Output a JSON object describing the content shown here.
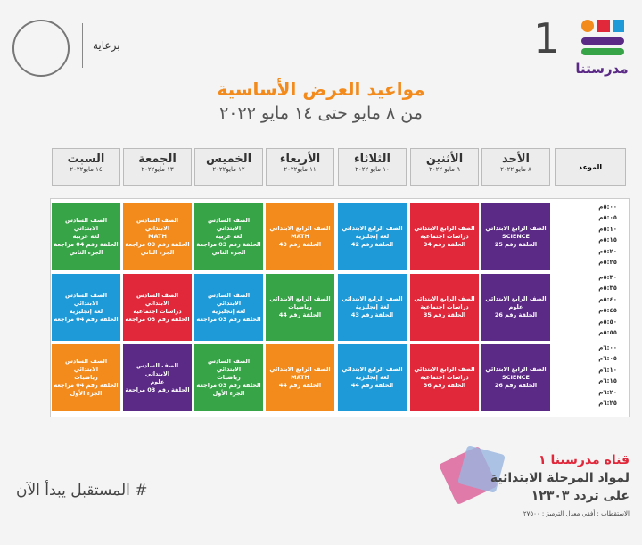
{
  "header": {
    "logo": "مدرستنا",
    "channel_number": "1",
    "sponsor": "برعاية"
  },
  "title": "مواعيد العرض الأساسية",
  "subtitle": "من ٨ مايو حتى ١٤ مايو ٢٠٢٢",
  "table": {
    "time_header": "الموعد",
    "days": [
      {
        "name": "الأحد",
        "date": "٨ مايو ٢٠٢٢"
      },
      {
        "name": "الأثنين",
        "date": "٩ مايو ٢٠٢٢"
      },
      {
        "name": "الثلاثاء",
        "date": "١٠ مايو ٢٠٢٢"
      },
      {
        "name": "الأربعاء",
        "date": "١١ مايو٢٠٢٢"
      },
      {
        "name": "الخميس",
        "date": "١٢ مايو٢٠٢٢"
      },
      {
        "name": "الجمعة",
        "date": "١٣ مايو٢٠٢٢"
      },
      {
        "name": "السبت",
        "date": "١٤ مايو٢٠٢٢"
      }
    ],
    "times": [
      [
        "٥:٠٠م",
        "٥:٠٥م",
        "٥:١٠م",
        "٥:١٥م",
        "٥:٢٠م",
        "٥:٢٥م"
      ],
      [
        "٥:٣٠م",
        "٥:٣٥م",
        "٥:٤٠م",
        "٥:٤٥م",
        "٥:٥٠م",
        "٥:٥٥م"
      ],
      [
        "٦:٠٠م",
        "٦:٠٥م",
        "٦:١٠م",
        "٦:١٥م",
        "٦:٢٠م",
        "٦:٢٥م"
      ]
    ],
    "blocks": [
      [
        {
          "color": "#5b2a86",
          "lines": [
            "الصف الرابع الابتدائي",
            "SCIENCE",
            "الحلقة رقم 25"
          ]
        },
        {
          "color": "#e0283a",
          "lines": [
            "الصف الرابع الابتدائي",
            "دراسات اجتماعية",
            "الحلقة رقم 34"
          ]
        },
        {
          "color": "#1f9ad8",
          "lines": [
            "الصف الرابع الابتدائي",
            "لغة إنجليزية",
            "الحلقة رقم 42"
          ]
        },
        {
          "color": "#f28a1c",
          "lines": [
            "الصف الرابع الابتدائي",
            "MATH",
            "الحلقة رقم 43"
          ]
        },
        {
          "color": "#37a447",
          "lines": [
            "الصف السادس الابتدائي",
            "لغة عربية",
            "الحلقة رقم 03 مراجعة",
            "الجزء الثاني"
          ]
        },
        {
          "color": "#f28a1c",
          "lines": [
            "الصف السادس الابتدائي",
            "MATH",
            "الحلقة رقم 03 مراجعة",
            "الجزء الثاني"
          ]
        },
        {
          "color": "#37a447",
          "lines": [
            "الصف السادس الابتدائي",
            "لغة عربية",
            "الحلقة رقم 04 مراجعة",
            "الجزء الثاني"
          ]
        }
      ],
      [
        {
          "color": "#5b2a86",
          "lines": [
            "الصف الرابع الابتدائي",
            "علوم",
            "الحلقة رقم 26"
          ]
        },
        {
          "color": "#e0283a",
          "lines": [
            "الصف الرابع الابتدائي",
            "دراسات اجتماعية",
            "الحلقة رقم 35"
          ]
        },
        {
          "color": "#1f9ad8",
          "lines": [
            "الصف الرابع الابتدائي",
            "لغة إنجليزية",
            "الحلقة رقم 43"
          ]
        },
        {
          "color": "#37a447",
          "lines": [
            "الصف الرابع الابتدائي",
            "رياضيات",
            "الحلقة رقم 44"
          ]
        },
        {
          "color": "#1f9ad8",
          "lines": [
            "الصف السادس الابتدائي",
            "لغة إنجليزية",
            "الحلقة رقم 03 مراجعة"
          ]
        },
        {
          "color": "#e0283a",
          "lines": [
            "الصف السادس الابتدائي",
            "دراسات اجتماعية",
            "الحلقة رقم 03 مراجعة"
          ]
        },
        {
          "color": "#1f9ad8",
          "lines": [
            "الصف السادس الابتدائي",
            "لغة إنجليزية",
            "الحلقة رقم 04 مراجعة"
          ]
        }
      ],
      [
        {
          "color": "#5b2a86",
          "lines": [
            "الصف الرابع الابتدائي",
            "SCIENCE",
            "الحلقة رقم 26"
          ]
        },
        {
          "color": "#e0283a",
          "lines": [
            "الصف الرابع الابتدائي",
            "دراسات اجتماعية",
            "الحلقة رقم 36"
          ]
        },
        {
          "color": "#1f9ad8",
          "lines": [
            "الصف الرابع الابتدائي",
            "لغة إنجليزية",
            "الحلقة رقم 44"
          ]
        },
        {
          "color": "#f28a1c",
          "lines": [
            "الصف الرابع الابتدائي",
            "MATH",
            "الحلقة رقم 44"
          ]
        },
        {
          "color": "#37a447",
          "lines": [
            "الصف السادس الابتدائي",
            "رياضيات",
            "الحلقة رقم 03 مراجعة",
            "الجزء الأول"
          ]
        },
        {
          "color": "#5b2a86",
          "lines": [
            "الصف السادس الابتدائي",
            "علوم",
            "الحلقة رقم 03 مراجعة"
          ]
        },
        {
          "color": "#f28a1c",
          "lines": [
            "الصف السادس الابتدائي",
            "رياضيات",
            "الحلقة رقم 04 مراجعة",
            "الجزء الأول"
          ]
        }
      ]
    ]
  },
  "footer": {
    "slogan": "# المستقبل يبدأ الآن",
    "channel": "قناة مدرستنا ١",
    "stage": "لمواد المرحلة الابتدائية",
    "frequency": "على تردد ١٢٣٠٣",
    "reception": "الاستقطاب : أفقي معدل الترميز : ٢٧٥٠٠"
  }
}
